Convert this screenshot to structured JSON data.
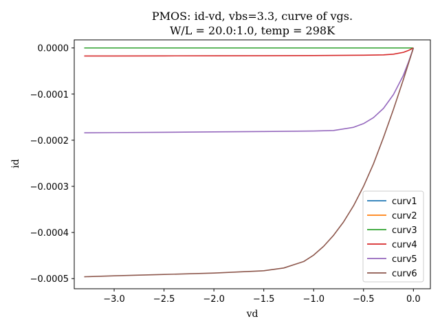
{
  "chart_data": {
    "type": "line",
    "title_line1": "PMOS: id-vd, vbs=3.3, curve of vgs.",
    "title_line2": "W/L = 20.0:1.0, temp = 298K",
    "xlabel": "vd",
    "ylabel": "id",
    "xlim": [
      -3.4,
      0.17
    ],
    "ylim": [
      -0.000522,
      1.75e-05
    ],
    "xticks": [
      -3.0,
      -2.5,
      -2.0,
      -1.5,
      -1.0,
      -0.5,
      0.0
    ],
    "xtick_labels": [
      "−3.0",
      "−2.5",
      "−2.0",
      "−1.5",
      "−1.0",
      "−0.5",
      "0.0"
    ],
    "yticks": [
      0.0,
      -0.0001,
      -0.0002,
      -0.0003,
      -0.0004,
      -0.0005
    ],
    "ytick_labels": [
      "0.0000",
      "−0.0001",
      "−0.0002",
      "−0.0003",
      "−0.0004",
      "−0.0005"
    ],
    "legend_position": "lower-right",
    "colors": {
      "curv1": "#1f77b4",
      "curv2": "#ff7f0e",
      "curv3": "#2ca02c",
      "curv4": "#d62728",
      "curv5": "#9467bd",
      "curv6": "#8c564b",
      "axis": "#000000",
      "legend_border": "#cccccc"
    },
    "series": [
      {
        "name": "curv1",
        "x": [
          -3.3,
          -2.5,
          -1.5,
          -0.5,
          0.0
        ],
        "y": [
          0,
          0,
          0,
          0,
          0
        ]
      },
      {
        "name": "curv2",
        "x": [
          -3.3,
          -2.5,
          -1.5,
          -0.5,
          0.0
        ],
        "y": [
          0,
          0,
          0,
          0,
          0
        ]
      },
      {
        "name": "curv3",
        "x": [
          -3.3,
          -2.5,
          -1.5,
          -0.5,
          0.0
        ],
        "y": [
          0,
          0,
          0,
          0,
          0
        ]
      },
      {
        "name": "curv4",
        "x": [
          -3.3,
          -3.0,
          -2.5,
          -2.0,
          -1.5,
          -1.0,
          -0.5,
          -0.3,
          -0.2,
          -0.1,
          -0.05,
          0.0
        ],
        "y": [
          -1.75e-05,
          -1.74e-05,
          -1.72e-05,
          -1.7e-05,
          -1.68e-05,
          -1.65e-05,
          -1.58e-05,
          -1.5e-05,
          -1.35e-05,
          -9.5e-06,
          -5.5e-06,
          0.0
        ]
      },
      {
        "name": "curv5",
        "x": [
          -3.3,
          -3.0,
          -2.5,
          -2.0,
          -1.5,
          -1.0,
          -0.8,
          -0.6,
          -0.5,
          -0.4,
          -0.3,
          -0.2,
          -0.1,
          -0.05,
          0.0
        ],
        "y": [
          -0.000184,
          -0.0001835,
          -0.0001828,
          -0.000182,
          -0.0001812,
          -0.00018,
          -0.000179,
          -0.000172,
          -0.000164,
          -0.000151,
          -0.000131,
          -0.000101,
          -5.9e-05,
          -3.1e-05,
          0.0
        ]
      },
      {
        "name": "curv6",
        "x": [
          -3.3,
          -3.0,
          -2.5,
          -2.0,
          -1.5,
          -1.3,
          -1.1,
          -1.0,
          -0.9,
          -0.8,
          -0.7,
          -0.6,
          -0.5,
          -0.4,
          -0.3,
          -0.2,
          -0.1,
          0.0
        ],
        "y": [
          -0.000496,
          -0.000494,
          -0.000491,
          -0.000488,
          -0.000483,
          -0.000477,
          -0.000463,
          -0.000449,
          -0.00043,
          -0.000406,
          -0.000377,
          -0.000342,
          -0.0003,
          -0.000251,
          -0.000194,
          -0.000133,
          -6.8e-05,
          0.0
        ]
      }
    ]
  }
}
